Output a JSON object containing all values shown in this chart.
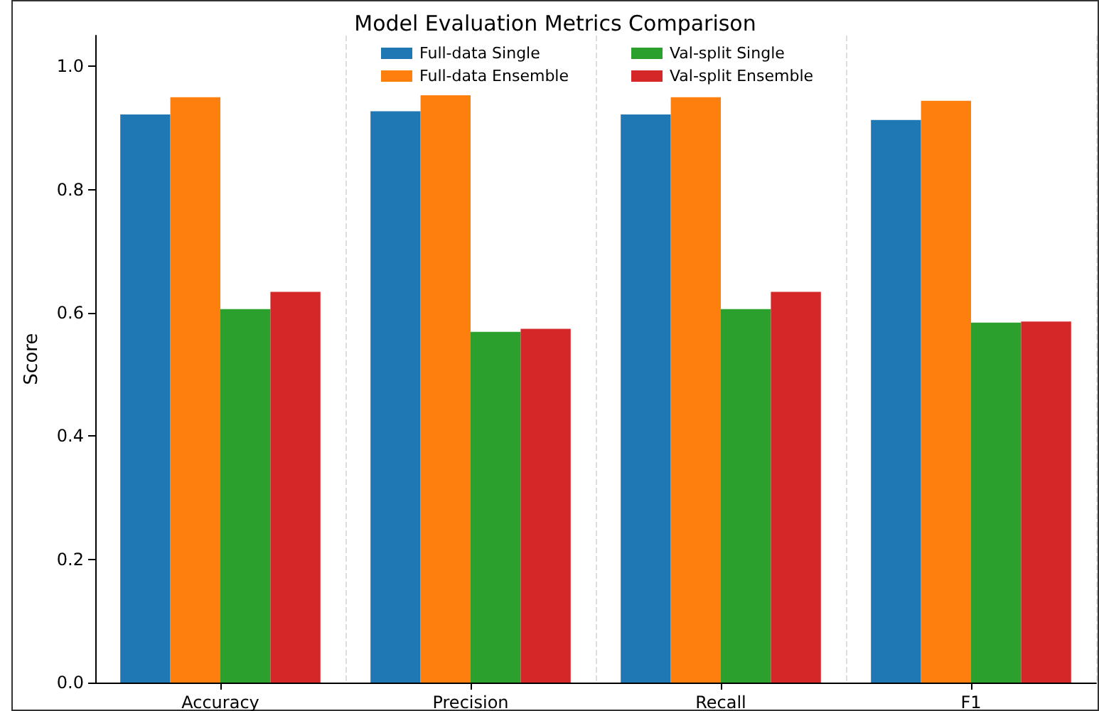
{
  "chart_data": {
    "type": "bar",
    "title": "Model Evaluation Metrics Comparison",
    "ylabel": "Score",
    "categories": [
      "Accuracy",
      "Precision",
      "Recall",
      "F1"
    ],
    "series": [
      {
        "name": "Full-data Single",
        "color": "#1f77b4",
        "values": [
          0.922,
          0.927,
          0.922,
          0.913
        ]
      },
      {
        "name": "Full-data Ensemble",
        "color": "#ff7f0e",
        "values": [
          0.95,
          0.953,
          0.95,
          0.944
        ]
      },
      {
        "name": "Val-split Single",
        "color": "#2ca02c",
        "values": [
          0.606,
          0.569,
          0.606,
          0.584
        ]
      },
      {
        "name": "Val-split Ensemble",
        "color": "#d62728",
        "values": [
          0.634,
          0.574,
          0.634,
          0.586
        ]
      }
    ],
    "ylim": [
      0,
      1.05
    ],
    "yticks": [
      {
        "value": 0,
        "label": "0.0"
      },
      {
        "value": 0.2,
        "label": "0.2"
      },
      {
        "value": 0.4,
        "label": "0.4"
      },
      {
        "value": 0.6,
        "label": "0.6"
      },
      {
        "value": 0.8,
        "label": "0.8"
      },
      {
        "value": 1,
        "label": "1.0"
      }
    ],
    "grid": "x",
    "legend": "top"
  }
}
